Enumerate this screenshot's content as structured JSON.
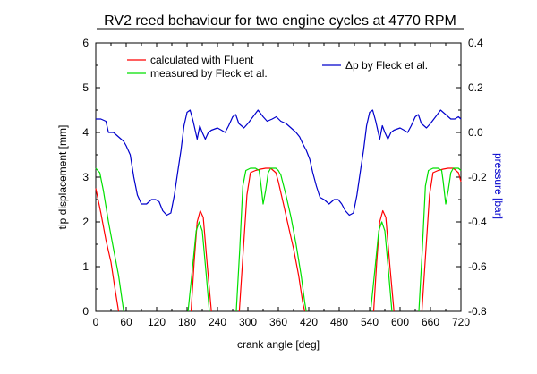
{
  "chart_data": {
    "type": "line",
    "title": "RV2 reed behaviour for two engine cycles at 4770 RPM",
    "xlabel": "crank angle [deg]",
    "ylabel_left": "tip displacement [mm]",
    "ylabel_right": "pressure [bar]",
    "xlim": [
      0,
      720
    ],
    "ylim_left": [
      0,
      6
    ],
    "ylim_right": [
      -0.8,
      0.4
    ],
    "x_ticks": [
      0,
      60,
      120,
      180,
      240,
      300,
      360,
      420,
      480,
      540,
      600,
      660,
      720
    ],
    "y_ticks_left": [
      0,
      1,
      2,
      3,
      4,
      5,
      6
    ],
    "y_ticks_right": [
      0.4,
      0.2,
      0.0,
      -0.2,
      -0.4,
      -0.6,
      -0.8
    ],
    "y_tick_labels_right": [
      "0.4",
      "0.2",
      "0.0",
      "-0.2",
      "-0.4",
      "-0.6",
      "-0.8"
    ],
    "grid": false,
    "colors": {
      "fluent": "#ff0000",
      "measured": "#00e000",
      "pressure": "#0000cc",
      "right_axis_label": "#0000cc"
    },
    "series": [
      {
        "name": "calculated with Fluent",
        "axis": "left",
        "segments": [
          [
            [
              0,
              2.75
            ],
            [
              10,
              2.2
            ],
            [
              20,
              1.6
            ],
            [
              30,
              1.1
            ],
            [
              38,
              0.5
            ],
            [
              45,
              0.0
            ]
          ],
          [
            [
              188,
              0.0
            ],
            [
              194,
              1.1
            ],
            [
              200,
              2.0
            ],
            [
              206,
              2.25
            ],
            [
              212,
              2.1
            ],
            [
              220,
              1.0
            ],
            [
              228,
              0.0
            ]
          ],
          [
            [
              283,
              0.0
            ],
            [
              290,
              1.2
            ],
            [
              298,
              2.6
            ],
            [
              305,
              3.1
            ],
            [
              315,
              3.15
            ],
            [
              325,
              3.18
            ],
            [
              335,
              3.2
            ],
            [
              345,
              3.2
            ],
            [
              355,
              3.1
            ],
            [
              360,
              2.9
            ],
            [
              370,
              2.4
            ],
            [
              380,
              1.9
            ],
            [
              390,
              1.4
            ],
            [
              400,
              0.8
            ],
            [
              408,
              0.2
            ],
            [
              412,
              0.0
            ]
          ],
          [
            [
              548,
              0.0
            ],
            [
              554,
              1.1
            ],
            [
              560,
              2.0
            ],
            [
              566,
              2.25
            ],
            [
              572,
              2.1
            ],
            [
              580,
              1.0
            ],
            [
              588,
              0.0
            ]
          ],
          [
            [
              643,
              0.0
            ],
            [
              650,
              1.2
            ],
            [
              658,
              2.6
            ],
            [
              665,
              3.1
            ],
            [
              675,
              3.15
            ],
            [
              685,
              3.18
            ],
            [
              695,
              3.2
            ],
            [
              705,
              3.2
            ],
            [
              715,
              3.1
            ],
            [
              720,
              2.9
            ]
          ]
        ]
      },
      {
        "name": "measured by Fleck et al.",
        "axis": "left",
        "segments": [
          [
            [
              0,
              3.2
            ],
            [
              8,
              3.1
            ],
            [
              15,
              2.7
            ],
            [
              25,
              2.0
            ],
            [
              35,
              1.4
            ],
            [
              45,
              0.8
            ],
            [
              55,
              0.0
            ]
          ],
          [
            [
              182,
              0.0
            ],
            [
              190,
              0.9
            ],
            [
              198,
              1.8
            ],
            [
              204,
              2.0
            ],
            [
              210,
              1.8
            ],
            [
              218,
              0.8
            ],
            [
              224,
              0.0
            ]
          ],
          [
            [
              277,
              0.0
            ],
            [
              284,
              1.4
            ],
            [
              290,
              2.8
            ],
            [
              296,
              3.15
            ],
            [
              305,
              3.2
            ],
            [
              315,
              3.2
            ],
            [
              322,
              3.15
            ],
            [
              325,
              2.9
            ],
            [
              330,
              2.4
            ],
            [
              335,
              2.7
            ],
            [
              340,
              3.1
            ],
            [
              345,
              3.2
            ],
            [
              355,
              3.2
            ],
            [
              360,
              3.15
            ],
            [
              365,
              3.05
            ],
            [
              375,
              2.6
            ],
            [
              385,
              2.1
            ],
            [
              395,
              1.5
            ],
            [
              405,
              0.8
            ],
            [
              412,
              0.2
            ],
            [
              415,
              0.0
            ]
          ],
          [
            [
              542,
              0.0
            ],
            [
              550,
              0.9
            ],
            [
              558,
              1.8
            ],
            [
              564,
              2.0
            ],
            [
              570,
              1.8
            ],
            [
              578,
              0.8
            ],
            [
              584,
              0.0
            ]
          ],
          [
            [
              637,
              0.0
            ],
            [
              644,
              1.4
            ],
            [
              650,
              2.8
            ],
            [
              656,
              3.15
            ],
            [
              665,
              3.2
            ],
            [
              675,
              3.2
            ],
            [
              682,
              3.15
            ],
            [
              685,
              2.9
            ],
            [
              690,
              2.4
            ],
            [
              695,
              2.7
            ],
            [
              700,
              3.1
            ],
            [
              705,
              3.2
            ],
            [
              715,
              3.2
            ],
            [
              720,
              3.15
            ]
          ]
        ]
      },
      {
        "name": "Δp by Fleck et al.",
        "axis": "right",
        "segments": [
          [
            [
              0,
              0.06
            ],
            [
              10,
              0.06
            ],
            [
              20,
              0.05
            ],
            [
              25,
              0.0
            ],
            [
              35,
              0.0
            ],
            [
              45,
              -0.02
            ],
            [
              55,
              -0.04
            ],
            [
              60,
              -0.06
            ],
            [
              68,
              -0.1
            ],
            [
              75,
              -0.2
            ],
            [
              82,
              -0.28
            ],
            [
              90,
              -0.32
            ],
            [
              100,
              -0.32
            ],
            [
              110,
              -0.3
            ],
            [
              118,
              -0.3
            ],
            [
              125,
              -0.31
            ],
            [
              132,
              -0.35
            ],
            [
              140,
              -0.37
            ],
            [
              148,
              -0.36
            ],
            [
              155,
              -0.28
            ],
            [
              162,
              -0.17
            ],
            [
              168,
              -0.08
            ],
            [
              174,
              0.03
            ],
            [
              180,
              0.09
            ],
            [
              186,
              0.1
            ],
            [
              192,
              0.05
            ],
            [
              200,
              -0.03
            ],
            [
              205,
              0.03
            ],
            [
              210,
              0.0
            ],
            [
              216,
              -0.03
            ],
            [
              222,
              0.0
            ],
            [
              228,
              0.01
            ],
            [
              240,
              0.02
            ],
            [
              248,
              0.01
            ],
            [
              255,
              0.0
            ],
            [
              262,
              0.03
            ],
            [
              270,
              0.07
            ],
            [
              276,
              0.08
            ],
            [
              282,
              0.04
            ],
            [
              292,
              0.02
            ],
            [
              300,
              0.04
            ],
            [
              310,
              0.07
            ],
            [
              320,
              0.1
            ],
            [
              330,
              0.07
            ],
            [
              338,
              0.05
            ],
            [
              348,
              0.06
            ],
            [
              356,
              0.07
            ],
            [
              365,
              0.05
            ],
            [
              375,
              0.04
            ],
            [
              385,
              0.02
            ],
            [
              395,
              0.0
            ],
            [
              402,
              -0.02
            ],
            [
              408,
              -0.05
            ],
            [
              415,
              -0.08
            ],
            [
              422,
              -0.12
            ],
            [
              428,
              -0.18
            ],
            [
              435,
              -0.24
            ],
            [
              442,
              -0.29
            ],
            [
              450,
              -0.3
            ],
            [
              460,
              -0.32
            ],
            [
              470,
              -0.3
            ],
            [
              478,
              -0.3
            ],
            [
              485,
              -0.32
            ],
            [
              492,
              -0.35
            ],
            [
              500,
              -0.37
            ],
            [
              508,
              -0.36
            ],
            [
              515,
              -0.28
            ],
            [
              522,
              -0.17
            ],
            [
              528,
              -0.08
            ],
            [
              534,
              0.03
            ],
            [
              540,
              0.09
            ],
            [
              546,
              0.1
            ],
            [
              552,
              0.05
            ],
            [
              560,
              -0.03
            ],
            [
              565,
              0.03
            ],
            [
              570,
              0.0
            ],
            [
              576,
              -0.03
            ],
            [
              582,
              0.0
            ],
            [
              588,
              0.01
            ],
            [
              600,
              0.02
            ],
            [
              608,
              0.01
            ],
            [
              615,
              0.0
            ],
            [
              622,
              0.03
            ],
            [
              630,
              0.07
            ],
            [
              636,
              0.08
            ],
            [
              642,
              0.04
            ],
            [
              652,
              0.02
            ],
            [
              660,
              0.04
            ],
            [
              670,
              0.07
            ],
            [
              680,
              0.1
            ],
            [
              690,
              0.08
            ],
            [
              700,
              0.06
            ],
            [
              708,
              0.06
            ],
            [
              715,
              0.07
            ],
            [
              720,
              0.06
            ]
          ]
        ]
      }
    ]
  }
}
